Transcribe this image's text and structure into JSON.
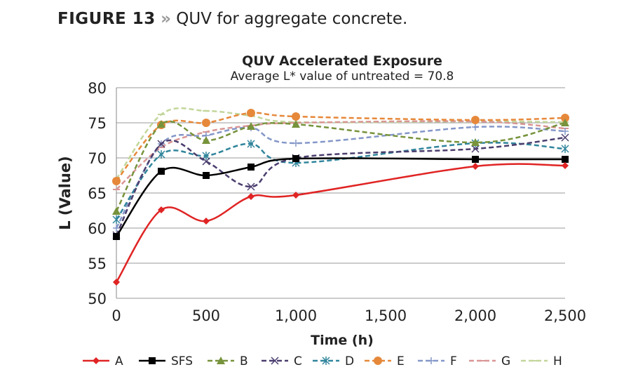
{
  "figure_label": "FIGURE 13",
  "figure_sep": "»",
  "figure_caption": "QUV for aggregate concrete.",
  "chart_data": {
    "type": "line",
    "title": "QUV Accelerated Exposure",
    "subtitle": "Average L* value of untreated = 70.8",
    "xlabel": "Time (h)",
    "ylabel": "L (Value)",
    "xlim": [
      0,
      2500
    ],
    "ylim": [
      50,
      80
    ],
    "xticks": [
      0,
      500,
      1000,
      1500,
      2000,
      2500
    ],
    "xtick_labels": [
      "0",
      "500",
      "1,000",
      "1,500",
      "2,000",
      "2,500"
    ],
    "yticks": [
      50,
      55,
      60,
      65,
      70,
      75,
      80
    ],
    "grid": "horizontal",
    "legend_placement": "bottom",
    "smoothed": true,
    "x": [
      0,
      250,
      500,
      750,
      1000,
      2000,
      2500
    ],
    "series": [
      {
        "name": "A",
        "color": "#e02424",
        "dash": false,
        "marker": "diamond",
        "values": [
          52.3,
          62.6,
          61.0,
          64.5,
          64.7,
          68.8,
          68.9
        ]
      },
      {
        "name": "SFS",
        "color": "#000000",
        "dash": false,
        "marker": "square",
        "values": [
          58.8,
          68.1,
          67.5,
          68.7,
          69.9,
          69.8,
          69.8
        ]
      },
      {
        "name": "B",
        "color": "#77933c",
        "dash": true,
        "marker": "triangle",
        "values": [
          62.4,
          74.8,
          72.5,
          74.5,
          74.8,
          72.2,
          75.0
        ]
      },
      {
        "name": "C",
        "color": "#4b3e6e",
        "dash": true,
        "marker": "x",
        "values": [
          59.0,
          72.0,
          69.5,
          65.9,
          70.0,
          71.3,
          72.9
        ]
      },
      {
        "name": "D",
        "color": "#31859c",
        "dash": true,
        "marker": "star",
        "values": [
          61.2,
          70.5,
          70.3,
          72.0,
          69.3,
          72.1,
          71.3
        ]
      },
      {
        "name": "E",
        "color": "#e6883a",
        "dash": true,
        "marker": "circle",
        "values": [
          66.7,
          74.7,
          75.0,
          76.4,
          75.9,
          75.4,
          75.7
        ]
      },
      {
        "name": "F",
        "color": "#8497c8",
        "dash": true,
        "marker": "plus",
        "values": [
          60.0,
          72.0,
          73.2,
          74.3,
          72.1,
          74.4,
          73.8
        ]
      },
      {
        "name": "G",
        "color": "#d99694",
        "dash": true,
        "marker": "dash",
        "values": [
          65.5,
          71.5,
          73.7,
          74.6,
          75.0,
          75.2,
          74.2
        ]
      },
      {
        "name": "H",
        "color": "#c3d69b",
        "dash": true,
        "marker": "dash",
        "values": [
          67.0,
          76.2,
          76.7,
          76.0,
          75.1,
          75.2,
          75.1
        ]
      }
    ]
  }
}
